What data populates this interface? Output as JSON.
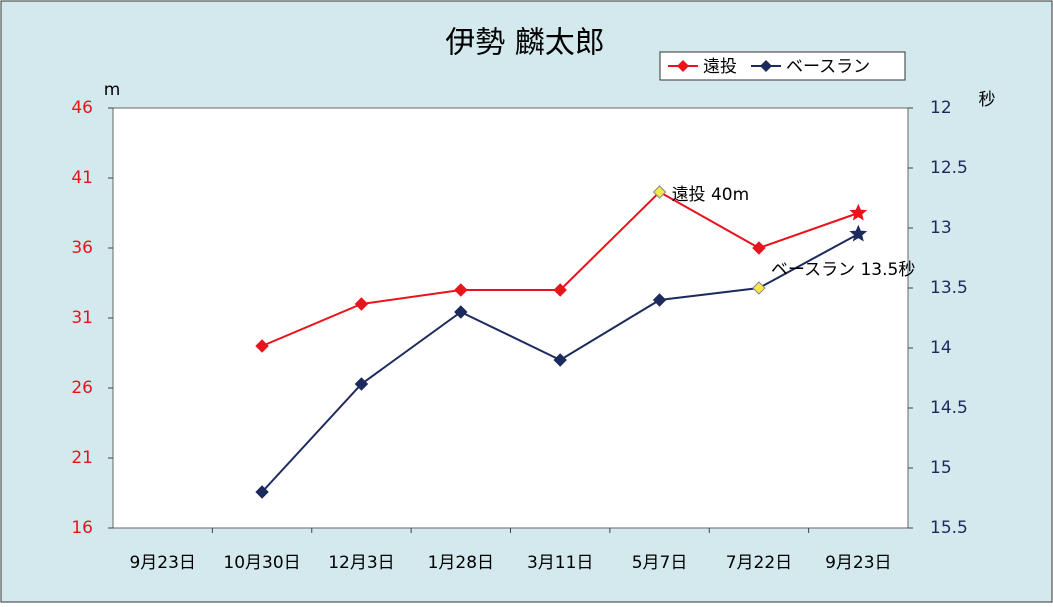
{
  "chart_data": {
    "type": "line",
    "title": "伊勢 麟太郎",
    "y_label": "m",
    "y2_label": "秒",
    "categories": [
      "9月23日",
      "10月30日",
      "12月3日",
      "1月28日",
      "3月11日",
      "5月7日",
      "7月22日",
      "9月23日"
    ],
    "series": [
      {
        "name": "遠投",
        "color": "#e8141c",
        "values": [
          null,
          29,
          32,
          33,
          33,
          40,
          36,
          38.5
        ]
      },
      {
        "name": "ベースラン",
        "color": "#1c2a5e",
        "axis": "y2",
        "values": [
          null,
          15.2,
          14.3,
          13.7,
          14.1,
          13.6,
          13.5,
          13.05
        ]
      }
    ],
    "ylim": [
      16,
      46
    ],
    "yticks": [
      16,
      21,
      26,
      31,
      36,
      41,
      46
    ],
    "y_color": "#e8141c",
    "y2lim": [
      12,
      15.5
    ],
    "y2_inverted": true,
    "y2ticks": [
      12,
      12.5,
      13,
      13.5,
      14,
      14.5,
      15,
      15.5
    ],
    "y2_color": "#1c2a5e",
    "annotations": [
      {
        "text": "遠投 40m",
        "series": 0,
        "index": 5
      },
      {
        "text": "ベースラン 13.5秒",
        "series": 1,
        "index": 6
      }
    ],
    "highlight_color": "#f5e84a",
    "legend": "top-right"
  }
}
